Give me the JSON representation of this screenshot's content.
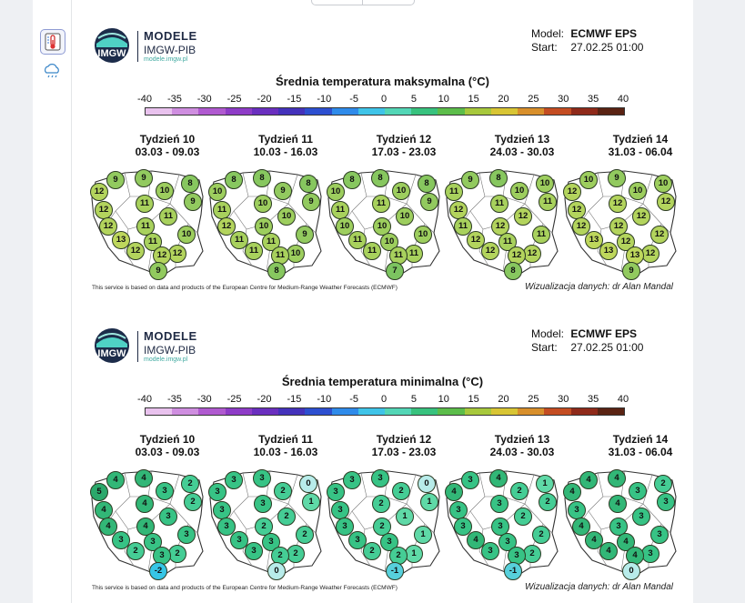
{
  "sidebar": {
    "items": [
      {
        "icon": "thermometer-icon",
        "active": true
      },
      {
        "icon": "rain-cloud-icon",
        "active": false
      }
    ]
  },
  "scale": {
    "labels": [
      "-40",
      "-35",
      "-30",
      "-25",
      "-20",
      "-15",
      "-10",
      "-5",
      "0",
      "5",
      "10",
      "15",
      "20",
      "25",
      "30",
      "35",
      "40"
    ],
    "colors": [
      "#e9c2ee",
      "#cf8ee0",
      "#b05ad0",
      "#8e3cc7",
      "#6a2fbf",
      "#4432bb",
      "#2d4fd0",
      "#2f8bea",
      "#3fc4e8",
      "#53d6b6",
      "#38c27e",
      "#5cbd4a",
      "#a7c83c",
      "#d8c534",
      "#d88f2b",
      "#c44d22",
      "#8f2a1a",
      "#5a2313"
    ]
  },
  "panels": [
    {
      "logo": {
        "title": "MODELE",
        "subtitle": "IMGW-PIB",
        "url": "modele.imgw.pl",
        "mark": "IMGW"
      },
      "model_label": "Model:",
      "model_value": "ECMWF EPS",
      "start_label": "Start:",
      "start_value": "27.02.25 01:00",
      "title": "Średnia temperatura maksymalna (°C)",
      "weeks": [
        {
          "name": "Tydzień 10",
          "range": "03.03 - 09.03",
          "values": [
            9,
            9,
            8,
            12,
            10,
            9,
            12,
            11,
            11,
            12,
            11,
            10,
            13,
            11,
            12,
            12,
            12,
            9
          ]
        },
        {
          "name": "Tydzień 11",
          "range": "10.03 - 16.03",
          "values": [
            8,
            8,
            8,
            10,
            9,
            9,
            11,
            10,
            10,
            12,
            10,
            9,
            11,
            11,
            10,
            11,
            11,
            8
          ]
        },
        {
          "name": "Tydzień 12",
          "range": "17.03 - 23.03",
          "values": [
            8,
            8,
            8,
            10,
            10,
            9,
            11,
            11,
            10,
            10,
            10,
            10,
            11,
            10,
            11,
            11,
            11,
            7
          ]
        },
        {
          "name": "Tydzień 13",
          "range": "24.03 - 30.03",
          "values": [
            9,
            8,
            10,
            11,
            10,
            11,
            12,
            11,
            12,
            11,
            12,
            11,
            12,
            11,
            12,
            12,
            12,
            8
          ]
        },
        {
          "name": "Tydzień 14",
          "range": "31.03 - 06.04",
          "values": [
            10,
            9,
            10,
            12,
            10,
            12,
            12,
            12,
            12,
            12,
            12,
            12,
            13,
            12,
            12,
            13,
            13,
            9
          ]
        }
      ],
      "footer_left": "This service is based on data and products of the European Centre for Medium-Range Weather Forecasts (ECMWF)",
      "footer_right": "Wizualizacja danych: dr Alan Mandal"
    },
    {
      "logo": {
        "title": "MODELE",
        "subtitle": "IMGW-PIB",
        "url": "modele.imgw.pl",
        "mark": "IMGW"
      },
      "model_label": "Model:",
      "model_value": "ECMWF EPS",
      "start_label": "Start:",
      "start_value": "27.02.25 01:00",
      "title": "Średnia temperatura minimalna (°C)",
      "weeks": [
        {
          "name": "Tydzień 10",
          "range": "03.03 - 09.03",
          "values": [
            4,
            4,
            2,
            5,
            3,
            2,
            4,
            4,
            3,
            4,
            4,
            3,
            3,
            3,
            2,
            2,
            3,
            -2
          ]
        },
        {
          "name": "Tydzień 11",
          "range": "10.03 - 16.03",
          "values": [
            3,
            3,
            0,
            3,
            2,
            1,
            3,
            3,
            2,
            3,
            2,
            2,
            3,
            3,
            2,
            3,
            2,
            0
          ]
        },
        {
          "name": "Tydzień 12",
          "range": "17.03 - 23.03",
          "values": [
            3,
            3,
            0,
            3,
            2,
            1,
            3,
            2,
            1,
            3,
            2,
            1,
            3,
            3,
            1,
            2,
            2,
            -1
          ]
        },
        {
          "name": "Tydzień 13",
          "range": "24.03 - 30.03",
          "values": [
            3,
            4,
            1,
            4,
            2,
            2,
            3,
            3,
            2,
            3,
            3,
            2,
            4,
            3,
            2,
            3,
            3,
            -1
          ]
        },
        {
          "name": "Tydzień 14",
          "range": "31.03 - 06.04",
          "values": [
            4,
            4,
            2,
            4,
            3,
            3,
            3,
            4,
            3,
            4,
            3,
            3,
            4,
            4,
            3,
            4,
            4,
            0
          ]
        }
      ],
      "footer_left": "This service is based on data and products of the European Centre for Medium-Range Weather Forecasts (ECMWF)",
      "footer_right": "Wizualizacja danych: dr Alan Mandal"
    }
  ]
}
